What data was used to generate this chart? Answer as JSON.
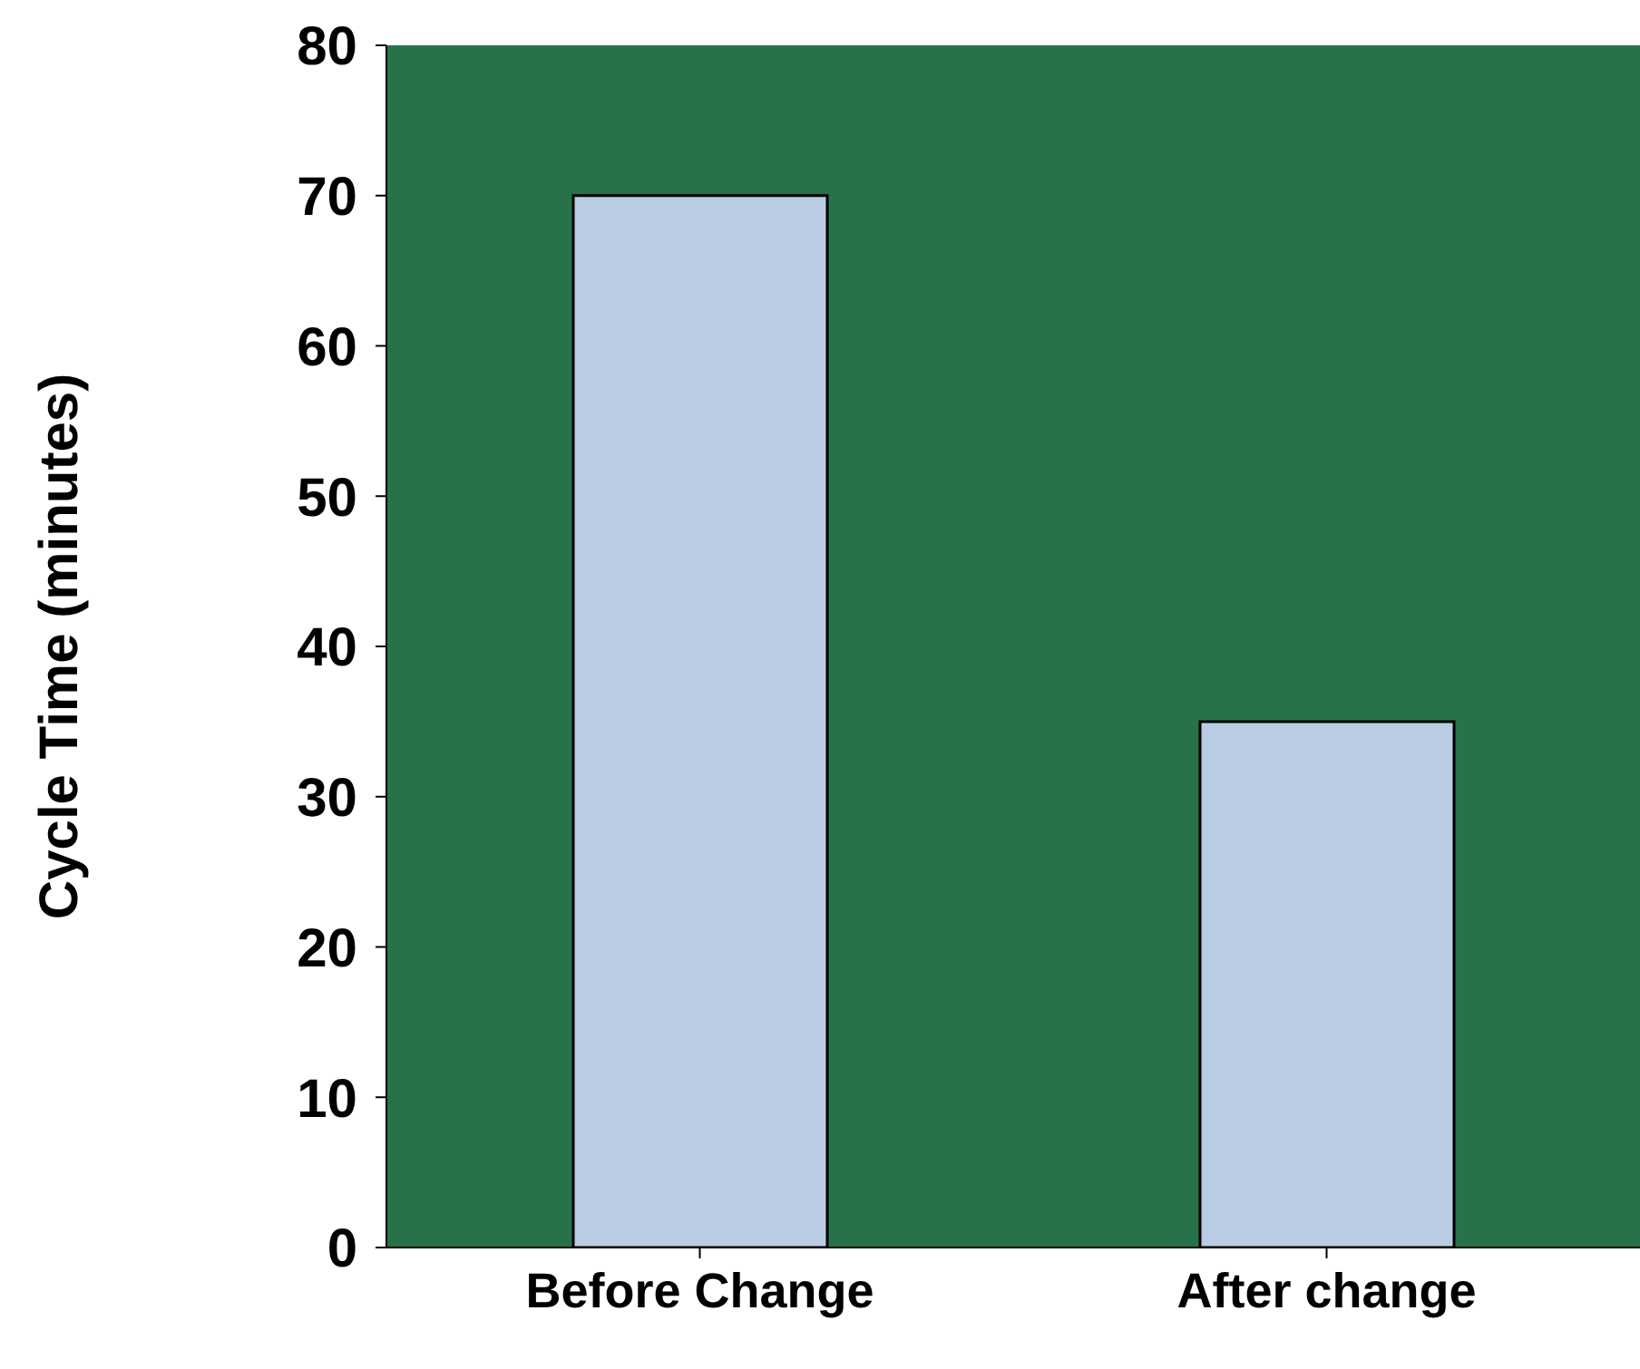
{
  "chart_data": {
    "type": "bar",
    "ylabel": "Cycle Time (minutes)",
    "categories": [
      "Before Change",
      "After change"
    ],
    "values": [
      70,
      35
    ],
    "color": "#b9cce4",
    "ylim": [
      0,
      80
    ],
    "yticks": [
      0,
      10,
      20,
      30,
      40,
      50,
      60,
      70,
      80
    ],
    "grid": false,
    "legend": false
  }
}
